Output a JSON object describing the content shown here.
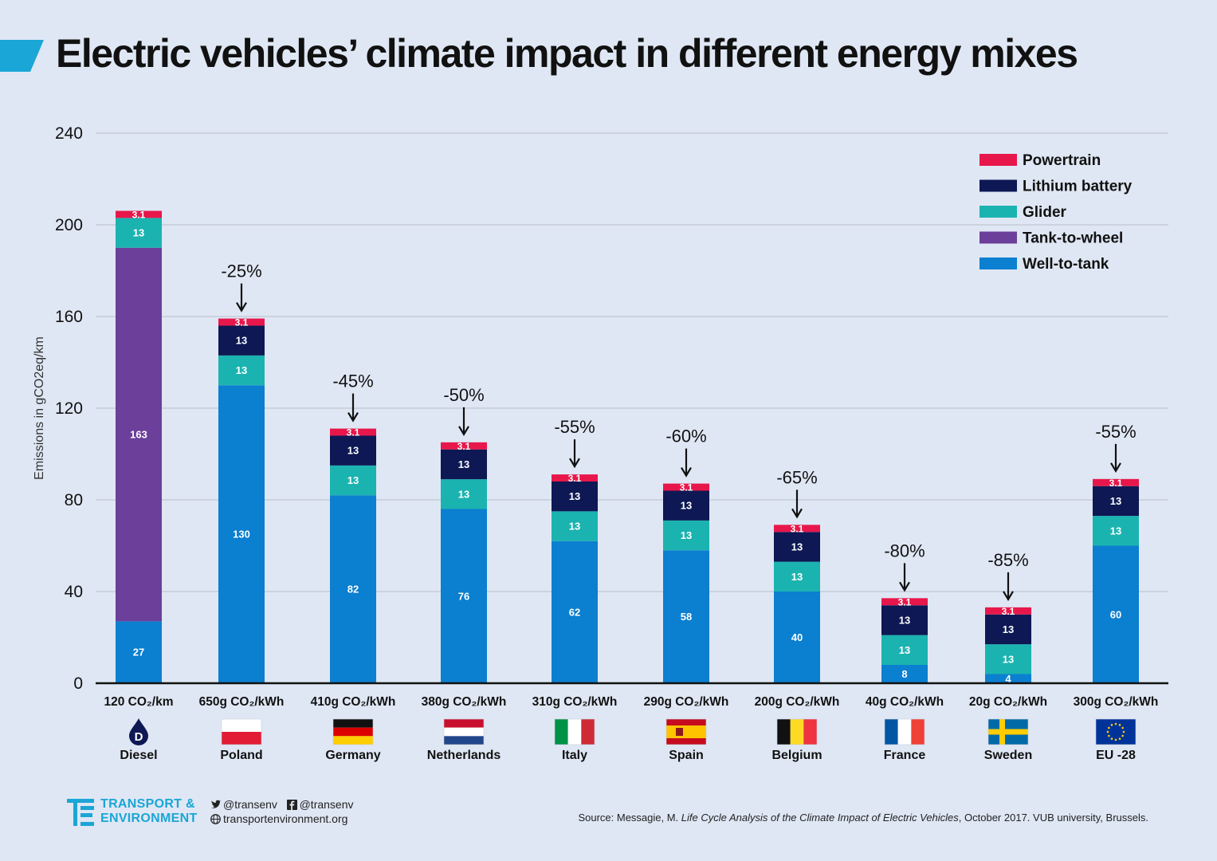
{
  "title": "Electric vehicles’ climate impact in different energy mixes",
  "colors": {
    "background": "#dfe7f4",
    "accent": "#1aa6d6",
    "powertrain": "#e8174b",
    "lithium_battery": "#0d1854",
    "glider": "#1bb3b0",
    "tank_to_wheel": "#6b3f9a",
    "well_to_tank": "#0b7fd0"
  },
  "chart_data": {
    "type": "bar",
    "stacked": true,
    "ylabel": "Emissions in gCO2eq/km",
    "ylim": [
      0,
      240
    ],
    "yticks": [
      0,
      40,
      80,
      120,
      160,
      200,
      240
    ],
    "grid": true,
    "legend_position": "top-right",
    "legend": [
      "Powertrain",
      "Lithium battery",
      "Glider",
      "Tank-to-wheel",
      "Well-to-tank"
    ],
    "categories": [
      {
        "label": "120 CO₂/km",
        "country": "Diesel",
        "icon": "diesel-drop-icon",
        "reduction": ""
      },
      {
        "label": "650g CO₂/kWh",
        "country": "Poland",
        "icon": "flag-poland-icon",
        "reduction": "-25%"
      },
      {
        "label": "410g CO₂/kWh",
        "country": "Germany",
        "icon": "flag-germany-icon",
        "reduction": "-45%"
      },
      {
        "label": "380g CO₂/kWh",
        "country": "Netherlands",
        "icon": "flag-netherlands-icon",
        "reduction": "-50%"
      },
      {
        "label": "310g CO₂/kWh",
        "country": "Italy",
        "icon": "flag-italy-icon",
        "reduction": "-55%"
      },
      {
        "label": "290g CO₂/kWh",
        "country": "Spain",
        "icon": "flag-spain-icon",
        "reduction": "-60%"
      },
      {
        "label": "200g CO₂/kWh",
        "country": "Belgium",
        "icon": "flag-belgium-icon",
        "reduction": "-65%"
      },
      {
        "label": "40g CO₂/kWh",
        "country": "France",
        "icon": "flag-france-icon",
        "reduction": "-80%"
      },
      {
        "label": "20g CO₂/kWh",
        "country": "Sweden",
        "icon": "flag-sweden-icon",
        "reduction": "-85%"
      },
      {
        "label": "300g CO₂/kWh",
        "country": "EU -28",
        "icon": "flag-eu-icon",
        "reduction": "-55%"
      }
    ],
    "series": [
      {
        "name": "Well-to-tank",
        "color_key": "well_to_tank",
        "values": [
          27,
          130,
          82,
          76,
          62,
          58,
          40,
          8,
          4,
          60
        ],
        "labels": [
          "27",
          "130",
          "82",
          "76",
          "62",
          "58",
          "40",
          "8",
          "4",
          "60"
        ]
      },
      {
        "name": "Tank-to-wheel",
        "color_key": "tank_to_wheel",
        "values": [
          163,
          0,
          0,
          0,
          0,
          0,
          0,
          0,
          0,
          0
        ],
        "labels": [
          "163",
          "",
          "",
          "",
          "",
          "",
          "",
          "",
          "",
          ""
        ]
      },
      {
        "name": "Glider",
        "color_key": "glider",
        "values": [
          13,
          13,
          13,
          13,
          13,
          13,
          13,
          13,
          13,
          13
        ],
        "labels": [
          "13",
          "13",
          "13",
          "13",
          "13",
          "13",
          "13",
          "13",
          "13",
          "13"
        ]
      },
      {
        "name": "Lithium battery",
        "color_key": "lithium_battery",
        "values": [
          0,
          13,
          13,
          13,
          13,
          13,
          13,
          13,
          13,
          13
        ],
        "labels": [
          "",
          "13",
          "13",
          "13",
          "13",
          "13",
          "13",
          "13",
          "13",
          "13"
        ]
      },
      {
        "name": "Powertrain",
        "color_key": "powertrain",
        "values": [
          3.1,
          3.1,
          3.1,
          3.1,
          3.1,
          3.1,
          3.1,
          3.1,
          3.1,
          3.1
        ],
        "labels": [
          "3.1",
          "3.1",
          "3.1",
          "3.1",
          "3.1",
          "3.1",
          "3.1",
          "3.1",
          "3.1",
          "3.1"
        ]
      }
    ]
  },
  "footer": {
    "logo_line1": "TRANSPORT &",
    "logo_line2": "ENVIRONMENT",
    "twitter": "@transenv",
    "facebook": "@transenv",
    "website": "transportenvironment.org",
    "source_prefix": "Source: Messagie, M. ",
    "source_title": "Life Cycle Analysis of the Climate Impact of Electric Vehicles",
    "source_suffix": ", October 2017. VUB university, Brussels."
  }
}
